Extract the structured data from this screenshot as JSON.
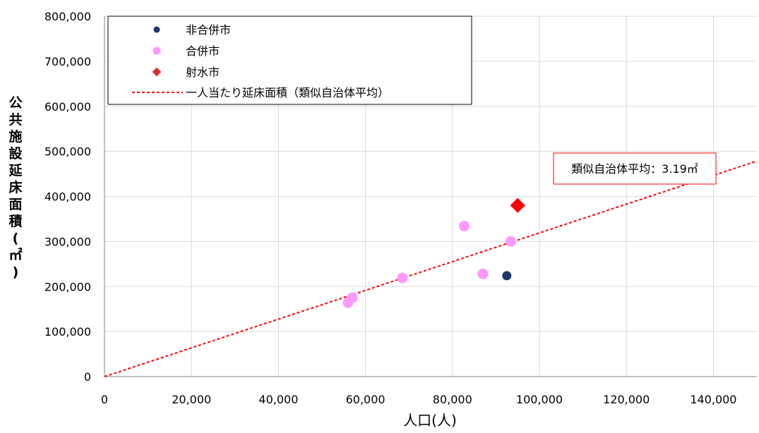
{
  "chart_data": {
    "type": "scatter",
    "xlabel": "人口(人)",
    "ylabel_chars": [
      "公",
      "共",
      "施",
      "設",
      "延",
      "床",
      "面",
      "積",
      "(",
      "㎡",
      ")"
    ],
    "xlim": [
      0,
      150000
    ],
    "ylim": [
      0,
      800000
    ],
    "x_ticks": [
      0,
      20000,
      40000,
      60000,
      80000,
      100000,
      120000,
      140000
    ],
    "x_tick_labels": [
      "0",
      "20,000",
      "40,000",
      "60,000",
      "80,000",
      "100,000",
      "120,000",
      "140,000"
    ],
    "y_ticks": [
      0,
      100000,
      200000,
      300000,
      400000,
      500000,
      600000,
      700000,
      800000
    ],
    "y_tick_labels": [
      "0",
      "100,000",
      "200,000",
      "300,000",
      "400,000",
      "500,000",
      "600,000",
      "700,000",
      "800,000"
    ],
    "grid": true,
    "legend_position": "top-left",
    "series": [
      {
        "name": "非合併市",
        "marker": "circle",
        "color": "#1f3864",
        "points": [
          {
            "x": 92500,
            "y": 224000
          }
        ]
      },
      {
        "name": "合併市",
        "marker": "circle",
        "color": "#ff99ff",
        "points": [
          {
            "x": 56000,
            "y": 164000
          },
          {
            "x": 57000,
            "y": 175000
          },
          {
            "x": 68500,
            "y": 219000
          },
          {
            "x": 82700,
            "y": 334000
          },
          {
            "x": 87000,
            "y": 228000
          },
          {
            "x": 93400,
            "y": 300000
          }
        ]
      },
      {
        "name": "射水市",
        "marker": "diamond",
        "color": "#ff0000",
        "points": [
          {
            "x": 95000,
            "y": 380000
          }
        ]
      }
    ],
    "trendline": {
      "name": "一人当たり延床面積（類似自治体平均）",
      "slope": 3.19,
      "color": "#ff0000",
      "style": "dashed"
    },
    "annotation": {
      "text": "類似自治体平均：3.19㎡"
    }
  }
}
